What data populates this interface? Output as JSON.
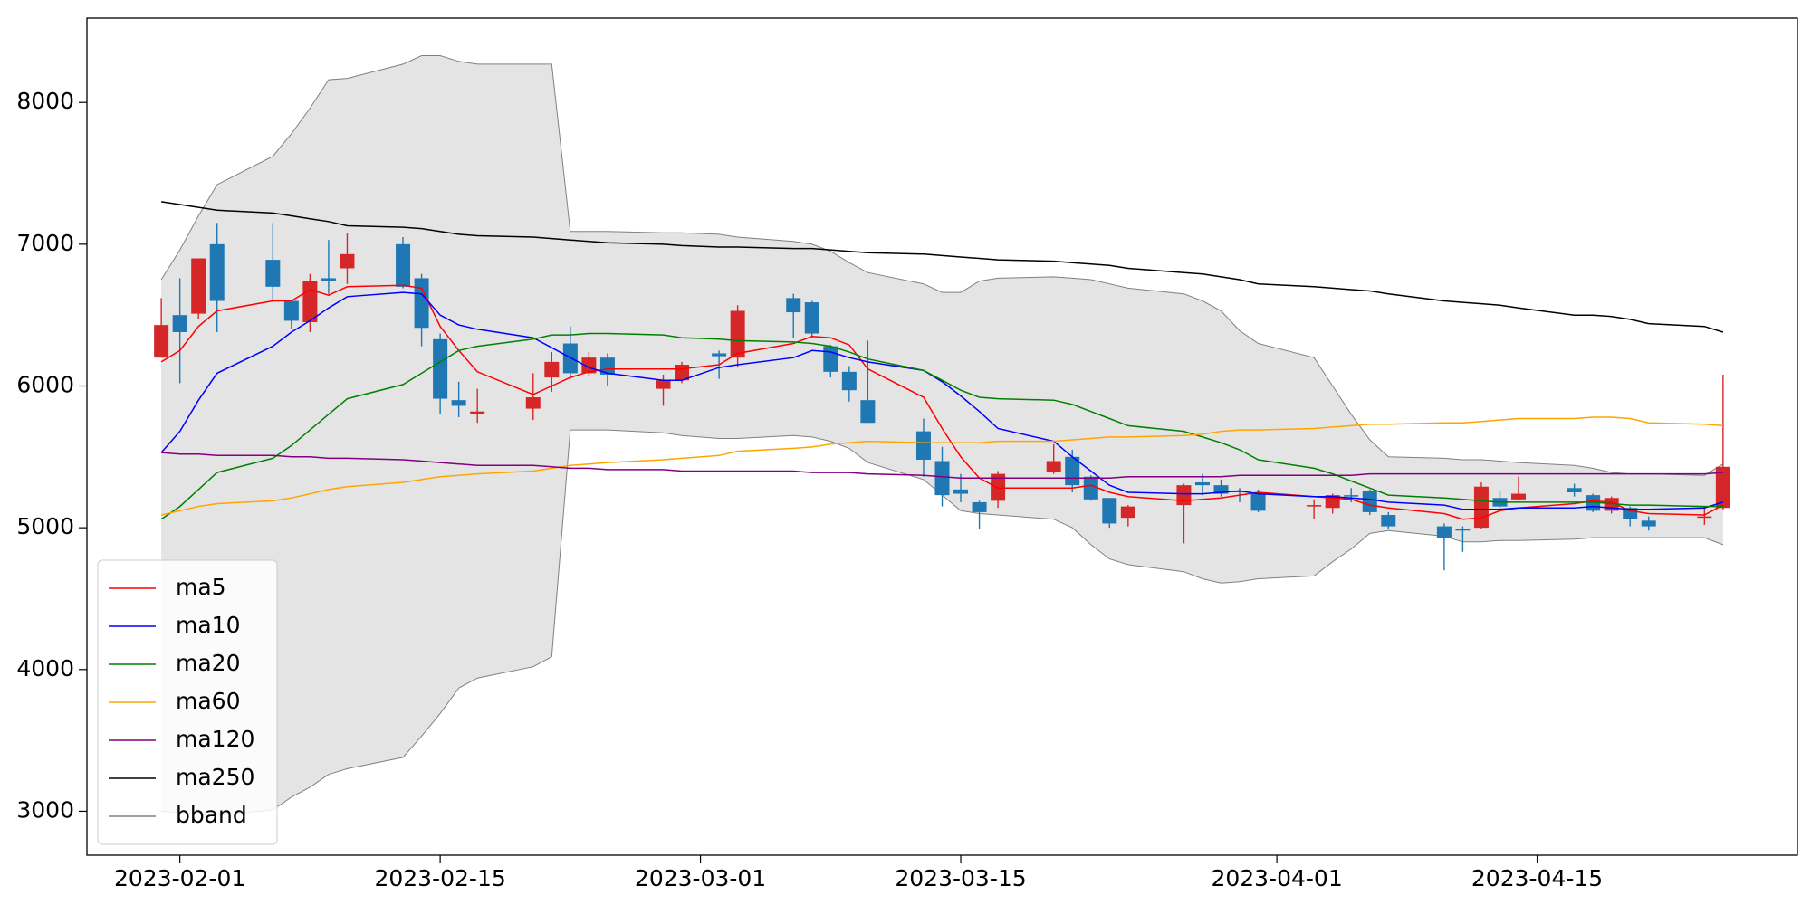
{
  "chart_data": {
    "type": "candlestick",
    "x": [
      "2023-01-31",
      "2023-02-01",
      "2023-02-02",
      "2023-02-03",
      "2023-02-06",
      "2023-02-07",
      "2023-02-08",
      "2023-02-09",
      "2023-02-10",
      "2023-02-13",
      "2023-02-14",
      "2023-02-15",
      "2023-02-16",
      "2023-02-17",
      "2023-02-20",
      "2023-02-21",
      "2023-02-22",
      "2023-02-23",
      "2023-02-24",
      "2023-02-27",
      "2023-02-28",
      "2023-03-02",
      "2023-03-03",
      "2023-03-06",
      "2023-03-07",
      "2023-03-08",
      "2023-03-09",
      "2023-03-10",
      "2023-03-13",
      "2023-03-14",
      "2023-03-15",
      "2023-03-16",
      "2023-03-17",
      "2023-03-20",
      "2023-03-21",
      "2023-03-22",
      "2023-03-23",
      "2023-03-24",
      "2023-03-27",
      "2023-03-28",
      "2023-03-29",
      "2023-03-30",
      "2023-03-31",
      "2023-04-03",
      "2023-04-04",
      "2023-04-05",
      "2023-04-06",
      "2023-04-07",
      "2023-04-10",
      "2023-04-11",
      "2023-04-12",
      "2023-04-13",
      "2023-04-14",
      "2023-04-17",
      "2023-04-18",
      "2023-04-19",
      "2023-04-20",
      "2023-04-21",
      "2023-04-24",
      "2023-04-25"
    ],
    "open": [
      6200,
      6500,
      6510,
      7000,
      6890,
      6600,
      6450,
      6760,
      6830,
      7000,
      6760,
      6330,
      5900,
      5800,
      5840,
      6060,
      6300,
      6090,
      6200,
      5980,
      6040,
      6230,
      6200,
      6620,
      6590,
      6280,
      6100,
      5900,
      5680,
      5470,
      5270,
      5180,
      5190,
      5390,
      5500,
      5360,
      5210,
      5070,
      5160,
      5320,
      5300,
      5260,
      5240,
      5150,
      5140,
      5230,
      5260,
      5090,
      5010,
      4990,
      5000,
      5210,
      5200,
      5280,
      5230,
      5120,
      5140,
      5050,
      5070,
      5140
    ],
    "high": [
      6620,
      6760,
      6900,
      7150,
      7150,
      6600,
      6790,
      7030,
      7080,
      7050,
      6790,
      6370,
      6030,
      5980,
      6090,
      6240,
      6420,
      6240,
      6230,
      6080,
      6170,
      6250,
      6570,
      6650,
      6600,
      6290,
      6140,
      6320,
      5770,
      5570,
      5380,
      5190,
      5400,
      5590,
      5550,
      5370,
      5210,
      5160,
      5310,
      5380,
      5340,
      5280,
      5270,
      5200,
      5240,
      5280,
      5270,
      5110,
      5030,
      5010,
      5320,
      5260,
      5360,
      5310,
      5240,
      5220,
      5150,
      5080,
      5150,
      6080
    ],
    "low": [
      6200,
      6020,
      6470,
      6380,
      6600,
      6400,
      6380,
      6650,
      6720,
      6690,
      6280,
      5800,
      5780,
      5740,
      5760,
      5960,
      6050,
      6070,
      6000,
      5860,
      6020,
      6050,
      6130,
      6340,
      6340,
      6060,
      5890,
      5740,
      5360,
      5150,
      5180,
      4990,
      5140,
      5380,
      5250,
      5190,
      5000,
      5010,
      4890,
      5230,
      5220,
      5180,
      5110,
      5060,
      5100,
      5180,
      5090,
      4990,
      4700,
      4830,
      4990,
      5120,
      5190,
      5220,
      5110,
      5100,
      5010,
      4980,
      5020,
      5130
    ],
    "close": [
      6430,
      6380,
      6900,
      6600,
      6700,
      6460,
      6740,
      6740,
      6930,
      6700,
      6410,
      5910,
      5860,
      5820,
      5920,
      6170,
      6090,
      6200,
      6080,
      6040,
      6150,
      6210,
      6530,
      6520,
      6370,
      6100,
      5970,
      5740,
      5480,
      5230,
      5240,
      5110,
      5380,
      5470,
      5300,
      5200,
      5030,
      5150,
      5300,
      5300,
      5240,
      5250,
      5120,
      5160,
      5230,
      5220,
      5110,
      5010,
      4930,
      4980,
      5290,
      5150,
      5240,
      5250,
      5120,
      5210,
      5060,
      5010,
      5080,
      5430
    ],
    "up_color": "#d62728",
    "down_color": "#1f77b4",
    "series": [
      {
        "name": "ma5",
        "color": "red",
        "values": [
          6170,
          6250,
          6420,
          6530,
          6600,
          6600,
          6680,
          6640,
          6700,
          6710,
          6690,
          6420,
          6250,
          6100,
          5940,
          6000,
          6060,
          6100,
          6120,
          6120,
          6120,
          6150,
          6230,
          6300,
          6350,
          6340,
          6290,
          6120,
          5920,
          5700,
          5500,
          5350,
          5280,
          5280,
          5280,
          5300,
          5250,
          5220,
          5190,
          5200,
          5210,
          5230,
          5250,
          5220,
          5210,
          5200,
          5160,
          5140,
          5100,
          5060,
          5070,
          5120,
          5140,
          5170,
          5190,
          5180,
          5120,
          5100,
          5090,
          5160
        ]
      },
      {
        "name": "ma10",
        "color": "blue",
        "values": [
          5530,
          5680,
          5900,
          6090,
          6280,
          6380,
          6460,
          6550,
          6630,
          6660,
          6650,
          6500,
          6430,
          6400,
          6340,
          6270,
          6200,
          6130,
          6090,
          6040,
          6040,
          6130,
          6150,
          6200,
          6250,
          6240,
          6200,
          6170,
          6110,
          6030,
          5930,
          5820,
          5700,
          5610,
          5500,
          5400,
          5300,
          5250,
          5240,
          5240,
          5250,
          5260,
          5240,
          5220,
          5220,
          5210,
          5200,
          5180,
          5160,
          5130,
          5130,
          5130,
          5140,
          5140,
          5150,
          5140,
          5130,
          5130,
          5140,
          5180
        ]
      },
      {
        "name": "ma20",
        "color": "green",
        "values": [
          5060,
          5150,
          5270,
          5390,
          5490,
          5580,
          5690,
          5800,
          5910,
          6010,
          6090,
          6170,
          6250,
          6280,
          6330,
          6360,
          6360,
          6370,
          6370,
          6360,
          6340,
          6330,
          6320,
          6310,
          6300,
          6280,
          6240,
          6190,
          6110,
          6040,
          5970,
          5920,
          5910,
          5900,
          5870,
          5820,
          5770,
          5720,
          5680,
          5640,
          5600,
          5550,
          5480,
          5420,
          5380,
          5330,
          5280,
          5230,
          5210,
          5200,
          5190,
          5180,
          5180,
          5180,
          5180,
          5170,
          5160,
          5160,
          5150,
          5150
        ]
      },
      {
        "name": "ma60",
        "color": "orange",
        "values": [
          5090,
          5120,
          5150,
          5170,
          5190,
          5210,
          5240,
          5270,
          5290,
          5320,
          5340,
          5360,
          5370,
          5380,
          5400,
          5420,
          5440,
          5450,
          5460,
          5480,
          5490,
          5510,
          5540,
          5560,
          5570,
          5590,
          5600,
          5610,
          5600,
          5600,
          5600,
          5600,
          5610,
          5610,
          5620,
          5630,
          5640,
          5640,
          5650,
          5660,
          5680,
          5690,
          5690,
          5700,
          5710,
          5720,
          5730,
          5730,
          5740,
          5740,
          5750,
          5760,
          5770,
          5770,
          5780,
          5780,
          5770,
          5740,
          5730,
          5720
        ]
      },
      {
        "name": "ma120",
        "color": "purple",
        "values": [
          5530,
          5520,
          5520,
          5510,
          5510,
          5500,
          5500,
          5490,
          5490,
          5480,
          5470,
          5460,
          5450,
          5440,
          5440,
          5430,
          5420,
          5420,
          5410,
          5410,
          5400,
          5400,
          5400,
          5400,
          5390,
          5390,
          5390,
          5380,
          5370,
          5360,
          5350,
          5350,
          5350,
          5350,
          5350,
          5350,
          5350,
          5360,
          5360,
          5360,
          5360,
          5370,
          5370,
          5370,
          5370,
          5370,
          5380,
          5380,
          5380,
          5380,
          5380,
          5380,
          5380,
          5380,
          5380,
          5380,
          5380,
          5380,
          5380,
          5390
        ]
      },
      {
        "name": "ma250",
        "color": "black",
        "values": [
          7300,
          7280,
          7260,
          7240,
          7220,
          7200,
          7180,
          7160,
          7130,
          7120,
          7110,
          7090,
          7070,
          7060,
          7050,
          7040,
          7030,
          7020,
          7010,
          7000,
          6990,
          6980,
          6980,
          6970,
          6970,
          6960,
          6950,
          6940,
          6930,
          6920,
          6910,
          6900,
          6890,
          6880,
          6870,
          6860,
          6850,
          6830,
          6800,
          6790,
          6770,
          6750,
          6720,
          6700,
          6690,
          6680,
          6670,
          6650,
          6600,
          6590,
          6580,
          6570,
          6550,
          6500,
          6500,
          6490,
          6470,
          6440,
          6420,
          6380
        ]
      }
    ],
    "band": {
      "name": "bband",
      "color": "gray",
      "fill": "#e4e4e4",
      "upper": [
        6750,
        6960,
        7200,
        7420,
        7620,
        7780,
        7960,
        8160,
        8170,
        8270,
        8330,
        8330,
        8290,
        8270,
        8270,
        8270,
        7090,
        7090,
        7090,
        7080,
        7080,
        7070,
        7050,
        7020,
        7000,
        6950,
        6870,
        6800,
        6720,
        6660,
        6660,
        6740,
        6760,
        6770,
        6760,
        6750,
        6720,
        6690,
        6650,
        6600,
        6530,
        6390,
        6300,
        6200,
        6000,
        5800,
        5620,
        5500,
        5490,
        5480,
        5480,
        5470,
        5460,
        5440,
        5420,
        5390,
        5380,
        5380,
        5370,
        5450
      ],
      "lower": [
        3000,
        2990,
        2980,
        2970,
        3010,
        3100,
        3170,
        3260,
        3300,
        3380,
        3530,
        3690,
        3870,
        3940,
        4020,
        4090,
        5690,
        5690,
        5690,
        5670,
        5650,
        5630,
        5630,
        5650,
        5640,
        5610,
        5560,
        5460,
        5340,
        5230,
        5120,
        5100,
        5090,
        5060,
        5000,
        4880,
        4780,
        4740,
        4690,
        4640,
        4610,
        4620,
        4640,
        4660,
        4760,
        4850,
        4960,
        4980,
        4940,
        4900,
        4900,
        4910,
        4910,
        4920,
        4930,
        4930,
        4930,
        4930,
        4930,
        4880
      ]
    },
    "xlim": [
      "2023-01-27",
      "2023-04-29"
    ],
    "xticks": [
      "2023-02-01",
      "2023-02-15",
      "2023-03-01",
      "2023-03-15",
      "2023-04-01",
      "2023-04-15"
    ],
    "ylim": [
      2690,
      8595
    ],
    "yticks": [
      3000,
      4000,
      5000,
      6000,
      7000,
      8000
    ],
    "legend": "lower left"
  }
}
